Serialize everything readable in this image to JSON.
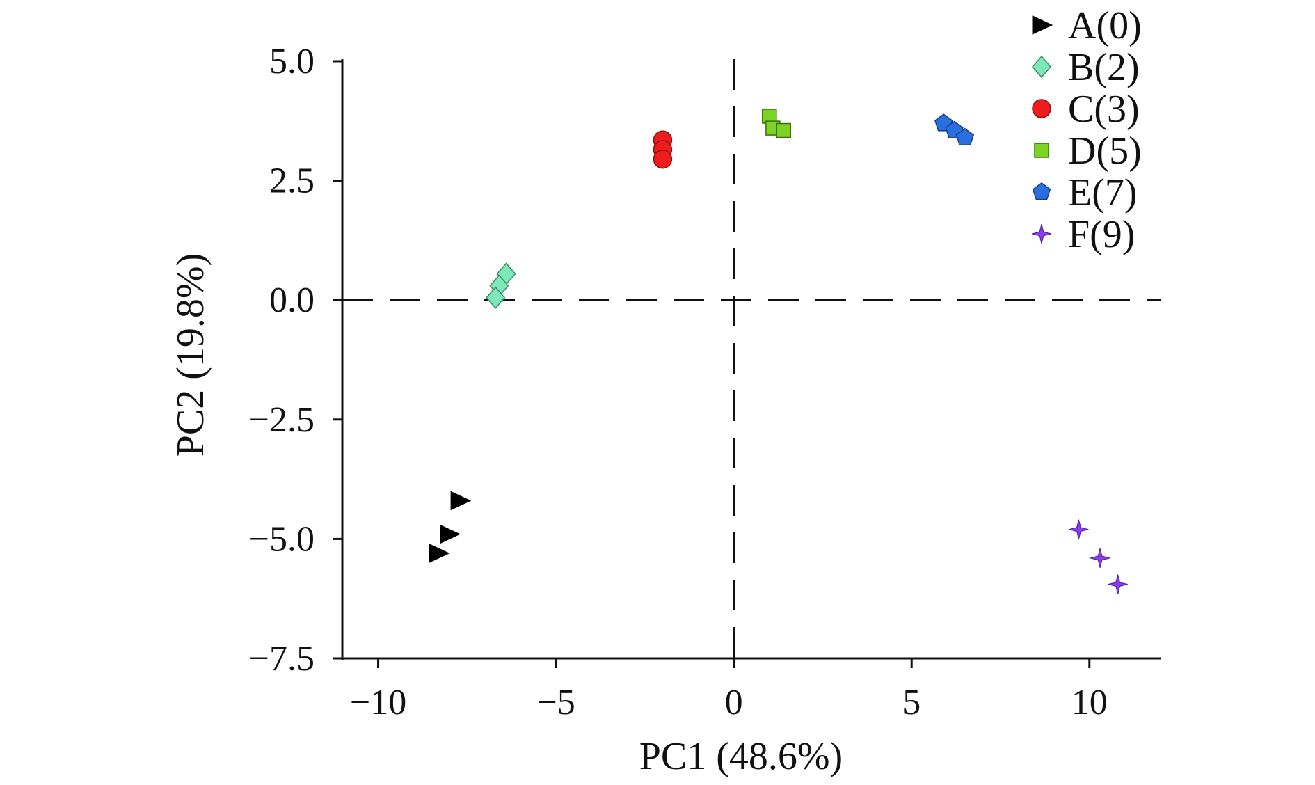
{
  "chart_data": {
    "type": "scatter",
    "title": "",
    "xlabel": "PC1 (48.6%)",
    "ylabel": "PC2 (19.8%)",
    "xlim": [
      -10.5,
      12
    ],
    "ylim": [
      -7.5,
      5.0
    ],
    "xticks": [
      -10,
      -5,
      0,
      5,
      10
    ],
    "xtick_labels": [
      "−10",
      "−5",
      "0",
      "5",
      "10"
    ],
    "yticks": [
      5.0,
      2.5,
      0.0,
      -2.5,
      -5.0,
      -7.5
    ],
    "ytick_labels": [
      "5.0",
      "2.5",
      "0.0",
      "−2.5",
      "−5.0",
      "−7.5"
    ],
    "grid": false,
    "reference_lines": {
      "x": 0,
      "y": 0,
      "style": "dashed"
    },
    "legend_position": "top-right",
    "series": [
      {
        "name": "A(0)",
        "marker": "triangle-right",
        "color": "#000000",
        "points": [
          [
            -7.7,
            -4.2
          ],
          [
            -8.0,
            -4.9
          ],
          [
            -8.3,
            -5.3
          ]
        ]
      },
      {
        "name": "B(2)",
        "marker": "diamond",
        "color": "#7ee8b8",
        "points": [
          [
            -6.4,
            0.55
          ],
          [
            -6.6,
            0.3
          ],
          [
            -6.7,
            0.05
          ]
        ]
      },
      {
        "name": "C(3)",
        "marker": "circle",
        "color": "#ee1c1c",
        "points": [
          [
            -2.0,
            3.35
          ],
          [
            -2.0,
            3.15
          ],
          [
            -2.0,
            2.95
          ]
        ]
      },
      {
        "name": "D(5)",
        "marker": "square",
        "color": "#7dd321",
        "points": [
          [
            1.0,
            3.85
          ],
          [
            1.1,
            3.6
          ],
          [
            1.4,
            3.55
          ]
        ]
      },
      {
        "name": "E(7)",
        "marker": "pentagon",
        "color": "#2a6fe0",
        "points": [
          [
            5.9,
            3.7
          ],
          [
            6.2,
            3.55
          ],
          [
            6.5,
            3.4
          ]
        ]
      },
      {
        "name": "F(9)",
        "marker": "star4",
        "color": "#8a3cf2",
        "points": [
          [
            9.7,
            -4.8
          ],
          [
            10.3,
            -5.4
          ],
          [
            10.8,
            -5.95
          ]
        ]
      }
    ]
  }
}
